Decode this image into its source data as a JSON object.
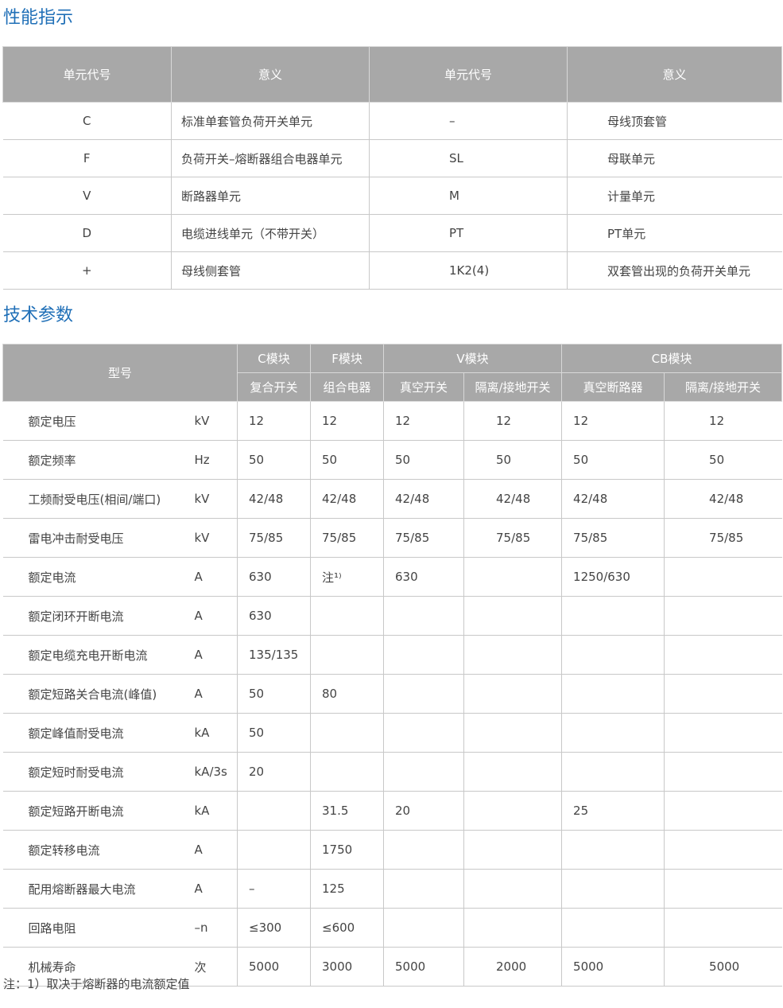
{
  "section1": {
    "title": "性能指示",
    "headers": [
      "单元代号",
      "意义",
      "单元代号",
      "意义"
    ],
    "rows": [
      [
        "C",
        "标准单套管负荷开关单元",
        "–",
        "母线顶套管"
      ],
      [
        "F",
        "负荷开关–熔断器组合电器单元",
        "SL",
        "母联单元"
      ],
      [
        "V",
        "断路器单元",
        "M",
        "计量单元"
      ],
      [
        "D",
        "电缆进线单元（不带开关）",
        "PT",
        "PT单元"
      ],
      [
        "+",
        "母线侧套管",
        "1K2(4)",
        "双套管出现的负荷开关单元"
      ]
    ]
  },
  "section2": {
    "title": "技术参数",
    "model_label": "型号",
    "groups": [
      "C模块",
      "F模块",
      "V模块",
      "CB模块"
    ],
    "subheaders": [
      "复合开关",
      "组合电器",
      "真空开关",
      "隔离/接地开关",
      "真空断路器",
      "隔离/接地开关"
    ],
    "rows": [
      [
        "额定电压",
        "kV",
        "12",
        "12",
        "12",
        "12",
        "12",
        "12"
      ],
      [
        "额定频率",
        "Hz",
        "50",
        "50",
        "50",
        "50",
        "50",
        "50"
      ],
      [
        "工频耐受电压(相间/端口)",
        "kV",
        "42/48",
        "42/48",
        "42/48",
        "42/48",
        "42/48",
        "42/48"
      ],
      [
        "雷电冲击耐受电压",
        "kV",
        "75/85",
        "75/85",
        "75/85",
        "75/85",
        "75/85",
        "75/85"
      ],
      [
        "额定电流",
        "A",
        "630",
        "注¹⁾",
        "630",
        "",
        "1250/630",
        ""
      ],
      [
        "额定闭环开断电流",
        "A",
        "630",
        "",
        "",
        "",
        "",
        ""
      ],
      [
        "额定电缆充电开断电流",
        "A",
        "135/135",
        "",
        "",
        "",
        "",
        ""
      ],
      [
        "额定短路关合电流(峰值)",
        "A",
        "50",
        "80",
        "",
        "",
        "",
        ""
      ],
      [
        "额定峰值耐受电流",
        "kA",
        "50",
        "",
        "",
        "",
        "",
        ""
      ],
      [
        "额定短时耐受电流",
        "kA/3s",
        "20",
        "",
        "",
        "",
        "",
        ""
      ],
      [
        "额定短路开断电流",
        "kA",
        "",
        "31.5",
        "20",
        "",
        "25",
        ""
      ],
      [
        "额定转移电流",
        "A",
        "",
        "1750",
        "",
        "",
        "",
        ""
      ],
      [
        "配用熔断器最大电流",
        "A",
        "–",
        "125",
        "",
        "",
        "",
        ""
      ],
      [
        "回路电阻",
        "–n",
        "≤300",
        "≤600",
        "",
        "",
        "",
        ""
      ],
      [
        "机械寿命",
        "次",
        "5000",
        "3000",
        "5000",
        "2000",
        "5000",
        "5000"
      ]
    ]
  },
  "note": "注：1）取决于熔断器的电流额定值"
}
